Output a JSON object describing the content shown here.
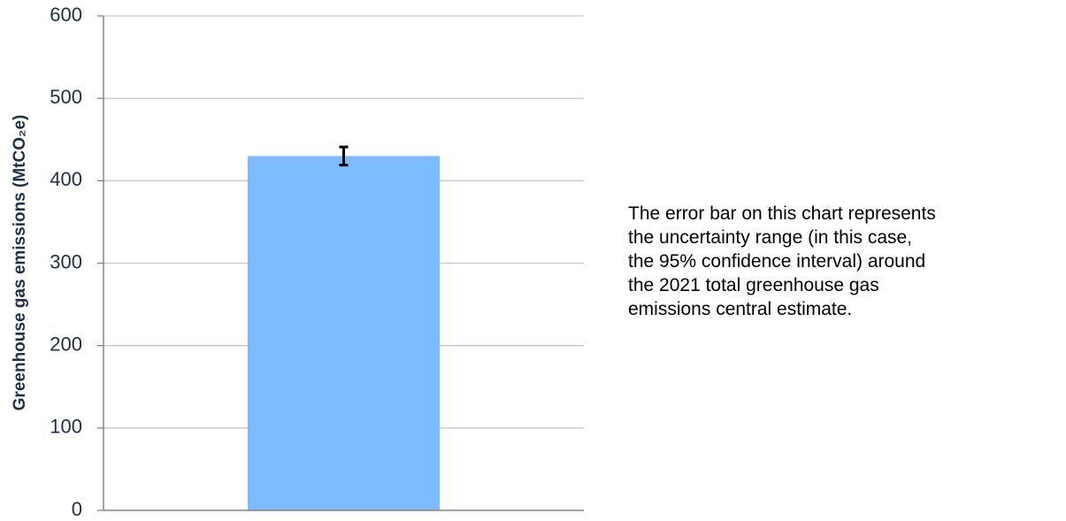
{
  "chart_data": {
    "type": "bar",
    "y_label": "Greenhouse gas emissions (MtCO₂e)",
    "categories": [
      null
    ],
    "values": [
      430
    ],
    "errors": [
      11
    ],
    "color": "#7abcfd",
    "error_color": "#000000",
    "ylim": [
      0,
      600
    ],
    "yticks": [
      0,
      100,
      200,
      300,
      400,
      500,
      600
    ],
    "grid": true,
    "annotation_lines": [
      "The error bar on this chart represents",
      "the uncertainty range (in this case,",
      "the 95% confidence interval) around",
      "the 2021 total greenhouse gas",
      "emissions central estimate."
    ]
  }
}
